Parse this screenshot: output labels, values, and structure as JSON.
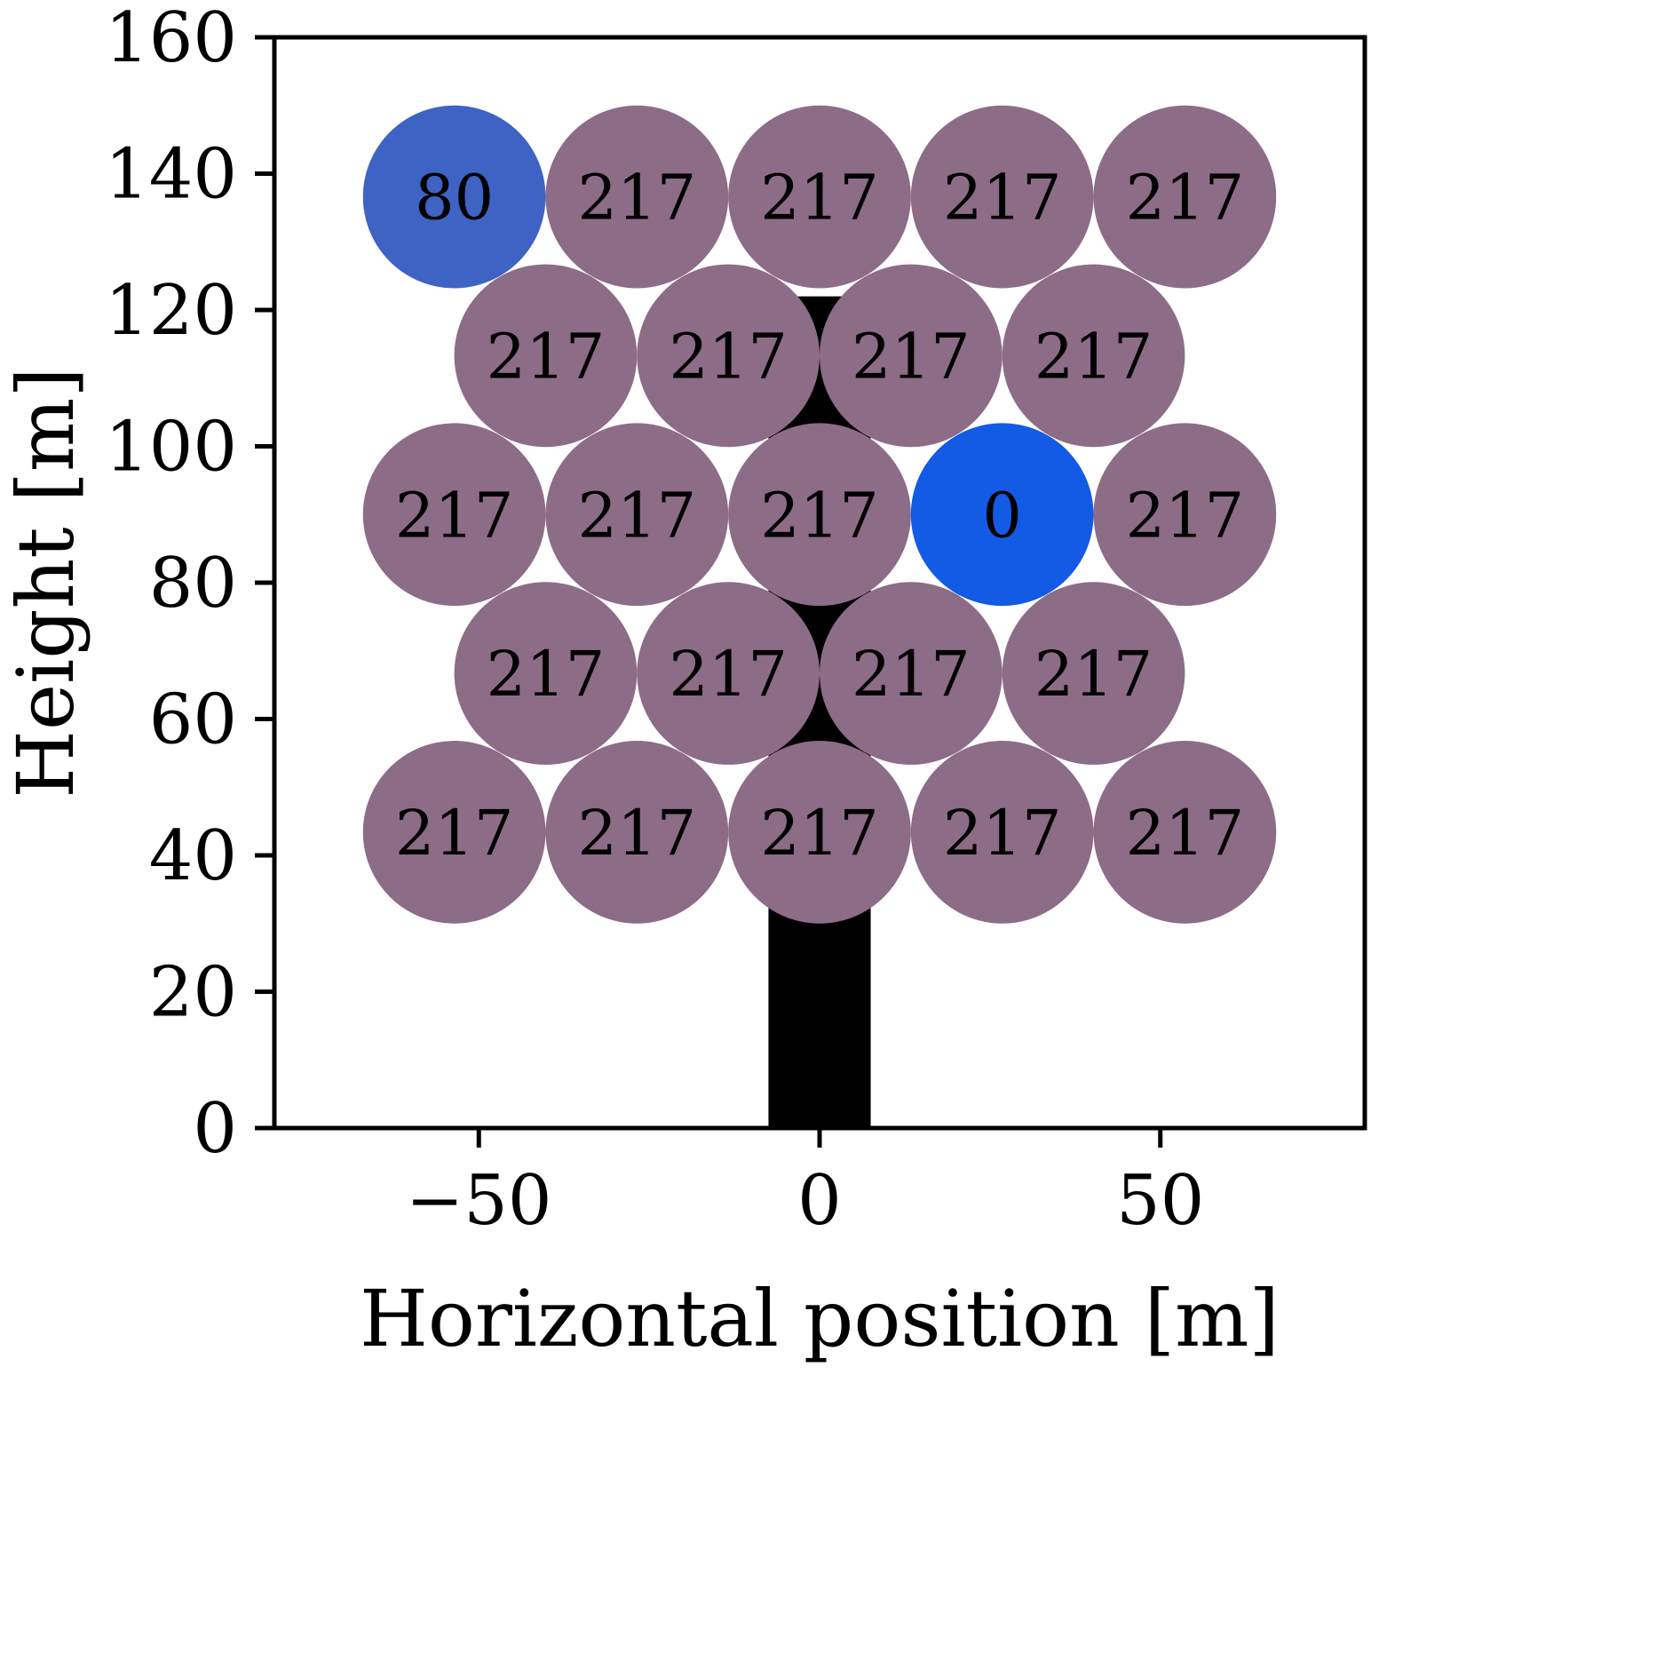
{
  "figure": {
    "title": ""
  },
  "chart_data": {
    "type": "scatter",
    "title": "",
    "xlabel": "Horizontal position [m]",
    "ylabel": "Height [m]",
    "xlim": [
      -80,
      80
    ],
    "ylim": [
      0,
      160
    ],
    "xticks": [
      -50,
      0,
      50
    ],
    "xtick_labels": [
      "−50",
      "0",
      "50"
    ],
    "yticks": [
      0,
      20,
      40,
      60,
      80,
      100,
      120,
      140,
      160
    ],
    "grid": false,
    "legend": "none",
    "marker_radius_m": 13.4,
    "colors": {
      "default_circle": "#8d6c87",
      "highlight_80": "#3e63c4",
      "highlight_0": "#135be5",
      "tower": "#000000",
      "axis": "#000000",
      "text": "#000000",
      "background": "#ffffff"
    },
    "tower": {
      "x_center": 0,
      "half_width_m": 7.5,
      "top_m": 122
    },
    "points": [
      {
        "x": -53.6,
        "y": 136.6,
        "label": "80",
        "color_key": "highlight_80"
      },
      {
        "x": -26.8,
        "y": 136.6,
        "label": "217",
        "color_key": "default_circle"
      },
      {
        "x": 0,
        "y": 136.6,
        "label": "217",
        "color_key": "default_circle"
      },
      {
        "x": 26.8,
        "y": 136.6,
        "label": "217",
        "color_key": "default_circle"
      },
      {
        "x": 53.6,
        "y": 136.6,
        "label": "217",
        "color_key": "default_circle"
      },
      {
        "x": -40.2,
        "y": 113.3,
        "label": "217",
        "color_key": "default_circle"
      },
      {
        "x": -13.4,
        "y": 113.3,
        "label": "217",
        "color_key": "default_circle"
      },
      {
        "x": 13.4,
        "y": 113.3,
        "label": "217",
        "color_key": "default_circle"
      },
      {
        "x": 40.2,
        "y": 113.3,
        "label": "217",
        "color_key": "default_circle"
      },
      {
        "x": -53.6,
        "y": 90.0,
        "label": "217",
        "color_key": "default_circle"
      },
      {
        "x": -26.8,
        "y": 90.0,
        "label": "217",
        "color_key": "default_circle"
      },
      {
        "x": 0,
        "y": 90.0,
        "label": "217",
        "color_key": "default_circle"
      },
      {
        "x": 26.8,
        "y": 90.0,
        "label": "0",
        "color_key": "highlight_0"
      },
      {
        "x": 53.6,
        "y": 90.0,
        "label": "217",
        "color_key": "default_circle"
      },
      {
        "x": -40.2,
        "y": 66.7,
        "label": "217",
        "color_key": "default_circle"
      },
      {
        "x": -13.4,
        "y": 66.7,
        "label": "217",
        "color_key": "default_circle"
      },
      {
        "x": 13.4,
        "y": 66.7,
        "label": "217",
        "color_key": "default_circle"
      },
      {
        "x": 40.2,
        "y": 66.7,
        "label": "217",
        "color_key": "default_circle"
      },
      {
        "x": -53.6,
        "y": 43.4,
        "label": "217",
        "color_key": "default_circle"
      },
      {
        "x": -26.8,
        "y": 43.4,
        "label": "217",
        "color_key": "default_circle"
      },
      {
        "x": 0,
        "y": 43.4,
        "label": "217",
        "color_key": "default_circle"
      },
      {
        "x": 26.8,
        "y": 43.4,
        "label": "217",
        "color_key": "default_circle"
      },
      {
        "x": 53.6,
        "y": 43.4,
        "label": "217",
        "color_key": "default_circle"
      }
    ]
  }
}
